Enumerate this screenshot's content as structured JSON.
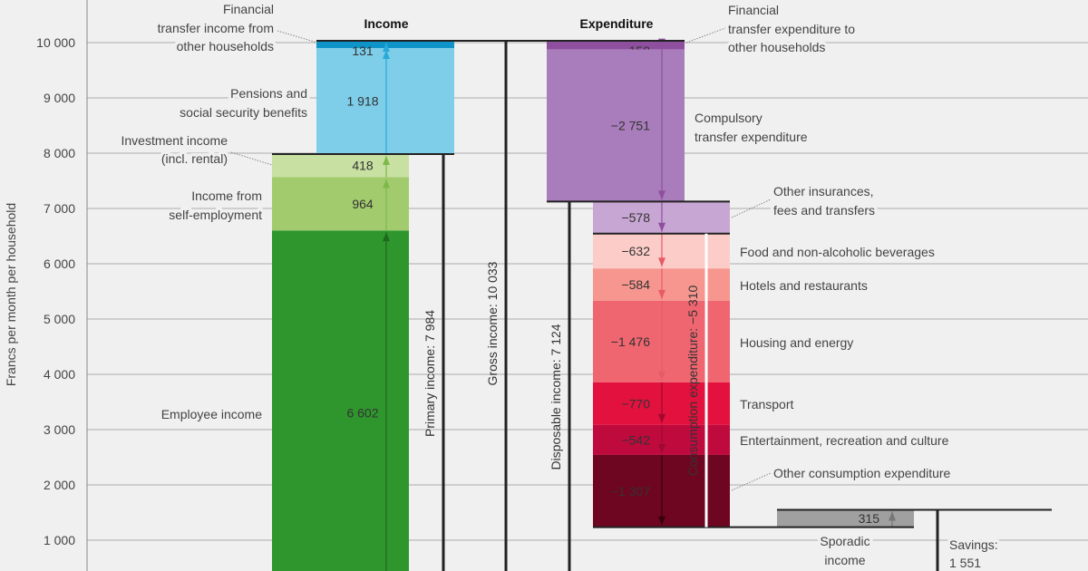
{
  "chart_data": {
    "type": "waterfall",
    "ylabel": "Francs per month per household",
    "ylim": [
      0,
      10500
    ],
    "yticks": [
      1000,
      2000,
      3000,
      4000,
      5000,
      6000,
      7000,
      8000,
      9000,
      10000
    ],
    "ytick_labels": [
      "1 000",
      "2 000",
      "3 000",
      "4 000",
      "5 000",
      "6 000",
      "7 000",
      "8 000",
      "9 000",
      "10 000"
    ],
    "grid": true,
    "income_title": "Income",
    "expenditure_title": "Expenditure",
    "income": [
      {
        "name": "Employee income",
        "value": 6602,
        "label": "6 602",
        "color": "#2f962e"
      },
      {
        "name": "Income from self-employment",
        "lines": [
          "Income from",
          "self-employment"
        ],
        "value": 964,
        "label": "964",
        "color": "#a2cb6e"
      },
      {
        "name": "Investment income (incl. rental)",
        "lines": [
          "Investment income",
          "(incl. rental)"
        ],
        "value": 418,
        "label": "418",
        "color": "#c8e0a2"
      },
      {
        "name": "Pensions and social security benefits",
        "lines": [
          "Pensions and",
          "social security benefits"
        ],
        "value": 1918,
        "label": "1 918",
        "color": "#7ecde9"
      },
      {
        "name": "Financial transfer income from other households",
        "lines": [
          "Financial",
          "transfer income from",
          "other households"
        ],
        "value": 131,
        "label": "131",
        "color": "#0e94c8"
      }
    ],
    "expenditure": [
      {
        "name": "Financial transfer expenditure to other households",
        "lines": [
          "Financial",
          "transfer expenditure to",
          "other households"
        ],
        "value": -158,
        "label": "−158",
        "color": "#8e4f9e"
      },
      {
        "name": "Compulsory transfer expenditure",
        "lines": [
          "Compulsory",
          "transfer expenditure"
        ],
        "value": -2751,
        "label": "−2 751",
        "color": "#a97dbb"
      },
      {
        "name": "Other insurances, fees and transfers",
        "lines": [
          "Other insurances,",
          "fees and transfers"
        ],
        "value": -578,
        "label": "−578",
        "color": "#c8a6d3"
      },
      {
        "name": "Food and non-alcoholic beverages",
        "value": -632,
        "label": "−632",
        "color": "#fccdc8"
      },
      {
        "name": "Hotels and restaurants",
        "value": -584,
        "label": "−584",
        "color": "#f6968f"
      },
      {
        "name": "Housing and energy",
        "value": -1476,
        "label": "−1 476",
        "color": "#ef6670"
      },
      {
        "name": "Transport",
        "value": -770,
        "label": "−770",
        "color": "#e3113e"
      },
      {
        "name": "Entertainment, recreation and culture",
        "value": -542,
        "label": "−542",
        "color": "#bf0a3e"
      },
      {
        "name": "Other consumption expenditure",
        "value": -1307,
        "label": "−1 307",
        "color": "#6e0621"
      }
    ],
    "sporadic": {
      "lines": [
        "Sporadic",
        "income"
      ],
      "value": 315,
      "label": "315",
      "color": "#a0a0a0"
    },
    "totals": {
      "primary": {
        "value": 7984,
        "label": "Primary income: 7 984"
      },
      "gross": {
        "value": 10033,
        "label": "Gross income: 10 033"
      },
      "disposable": {
        "value": 7124,
        "label": "Disposable income: 7 124"
      },
      "consumption": {
        "value": -5310,
        "label": "Consumption expenditure: −5 310"
      },
      "savings": {
        "value": 1551,
        "lines": [
          "Savings:",
          "1 551"
        ]
      }
    }
  }
}
